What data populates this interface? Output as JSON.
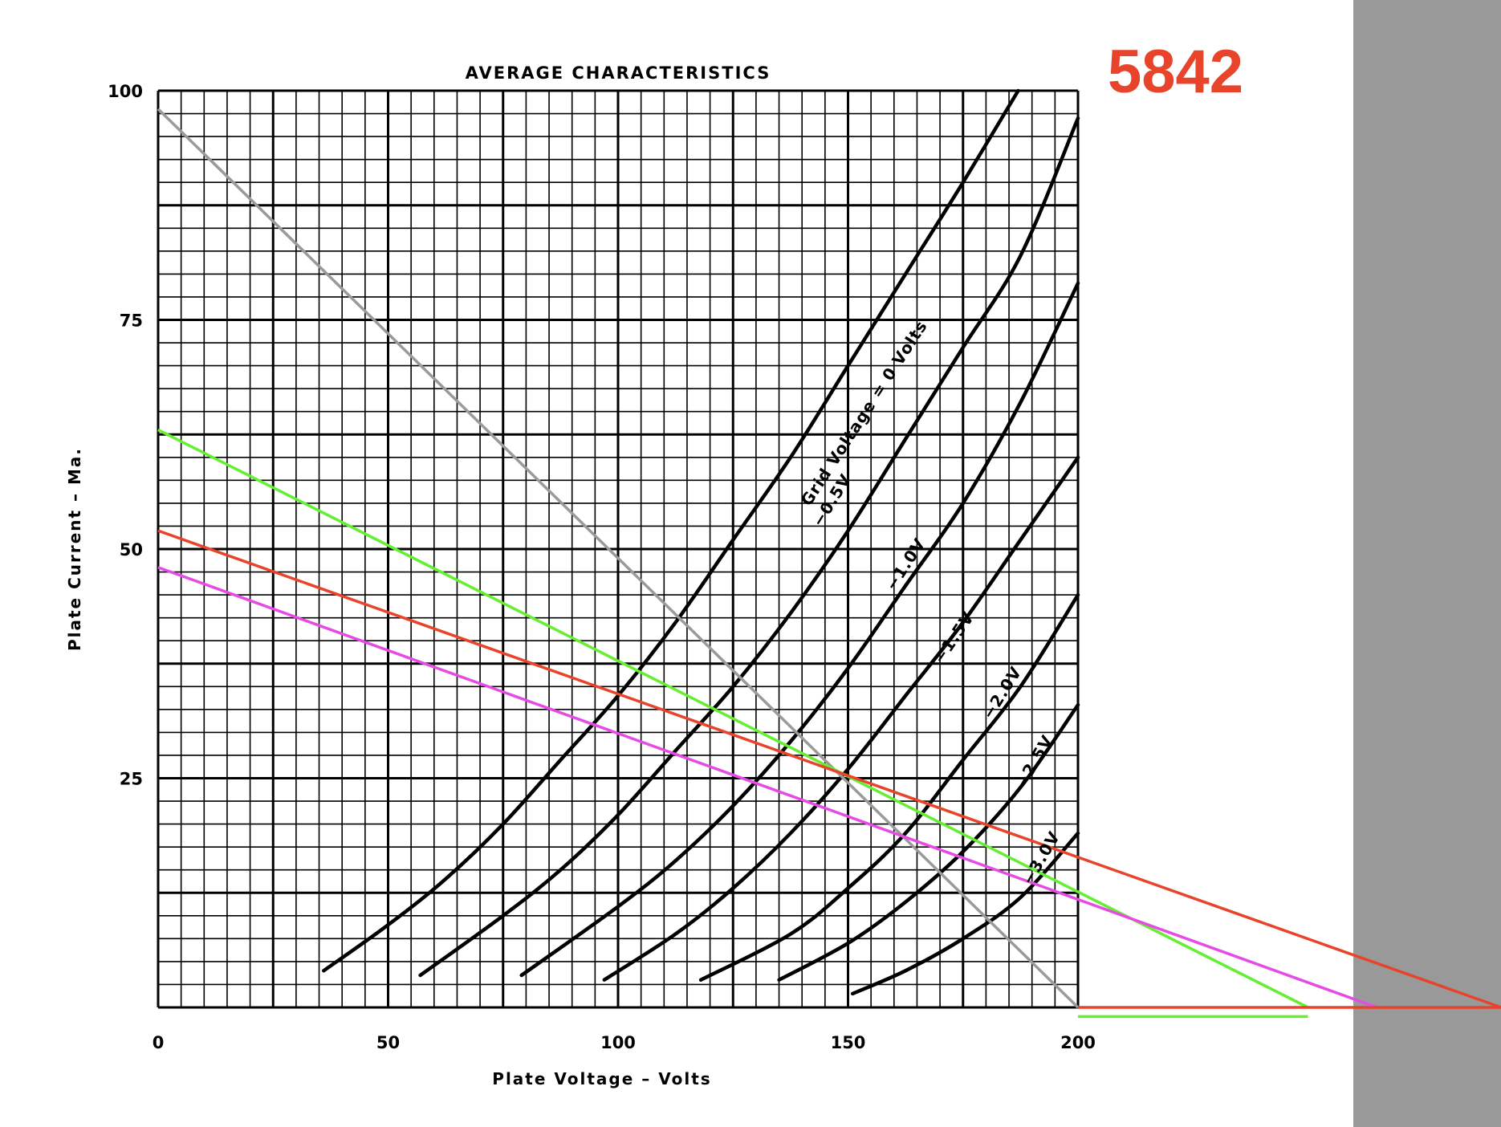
{
  "tube_number": {
    "text": "5842",
    "color": "#e8432b"
  },
  "chart_data": {
    "type": "line",
    "title": "AVERAGE CHARACTERISTICS",
    "xlabel": "Plate Voltage – Volts",
    "ylabel": "Plate Current – Ma.",
    "xlim": [
      0,
      200
    ],
    "ylim": [
      0,
      100
    ],
    "x_minor_step": 5,
    "y_minor_step": 2.5,
    "x_ticks": [
      0,
      50,
      100,
      150,
      200
    ],
    "x_tick_labels": [
      "0",
      "50",
      "100",
      "150",
      "200"
    ],
    "y_ticks": [
      25,
      50,
      75,
      100
    ],
    "y_tick_labels": [
      "25",
      "50",
      "75",
      "100"
    ],
    "grid": true,
    "series": [
      {
        "name": "Grid Voltage = 0 Volts",
        "label": "Grid Voltage = 0 Volts",
        "color": "#000000",
        "x": [
          36,
          50,
          62.5,
          75,
          87.5,
          100,
          112.5,
          125,
          137.5,
          150,
          162.5,
          175,
          187
        ],
        "y": [
          4,
          9,
          14,
          20,
          27,
          34,
          42,
          51,
          60,
          70,
          80,
          90,
          100
        ]
      },
      {
        "name": "-0.5V",
        "label": "−0.5V",
        "color": "#000000",
        "x": [
          57,
          75,
          87.5,
          100,
          112.5,
          125,
          137.5,
          150,
          162.5,
          175,
          187.5,
          200
        ],
        "y": [
          3.5,
          10,
          15,
          21,
          28,
          35,
          43,
          52,
          62,
          72,
          82,
          97
        ]
      },
      {
        "name": "-1.0V",
        "label": "−1.0V",
        "color": "#000000",
        "x": [
          79,
          100,
          112.5,
          125,
          137.5,
          150,
          162.5,
          175,
          187.5,
          200
        ],
        "y": [
          3.5,
          11,
          16,
          22,
          29,
          37,
          46,
          55,
          66,
          79
        ]
      },
      {
        "name": "-1.5V",
        "label": "−1.5V",
        "color": "#000000",
        "x": [
          97,
          112.5,
          125,
          137.5,
          150,
          162.5,
          175,
          187.5,
          200
        ],
        "y": [
          3,
          8,
          13,
          19,
          26,
          34,
          42,
          51,
          60
        ]
      },
      {
        "name": "-2.0V",
        "label": "−2.0V",
        "color": "#000000",
        "x": [
          118,
          137.5,
          150,
          162.5,
          175,
          187.5,
          200
        ],
        "y": [
          3,
          8,
          13,
          19,
          27,
          35,
          45
        ]
      },
      {
        "name": "-2.5V",
        "label": "−2.5V",
        "color": "#000000",
        "x": [
          135,
          150,
          162.5,
          175,
          187.5,
          200
        ],
        "y": [
          3,
          7,
          11.5,
          17,
          24,
          33
        ]
      },
      {
        "name": "-3.0V",
        "label": "−3.0V",
        "color": "#000000",
        "x": [
          151,
          162.5,
          175,
          187.5,
          200
        ],
        "y": [
          1.5,
          4,
          7.5,
          12,
          19
        ]
      }
    ],
    "load_lines": [
      {
        "color": "#9a9a9a",
        "x": [
          0,
          200
        ],
        "y": [
          98,
          0
        ]
      },
      {
        "color": "#66ee33",
        "x": [
          0,
          250
        ],
        "y": [
          63,
          0
        ]
      },
      {
        "color": "#e8432b",
        "x": [
          0,
          292
        ],
        "y": [
          52,
          0
        ]
      },
      {
        "color": "#e64be6",
        "x": [
          0,
          265
        ],
        "y": [
          48,
          0
        ]
      },
      {
        "color": "#e8432b",
        "x": [
          200,
          292
        ],
        "y": [
          0,
          0
        ]
      },
      {
        "color": "#66ee33",
        "x": [
          200,
          250
        ],
        "y": [
          -1,
          -1
        ]
      }
    ]
  }
}
